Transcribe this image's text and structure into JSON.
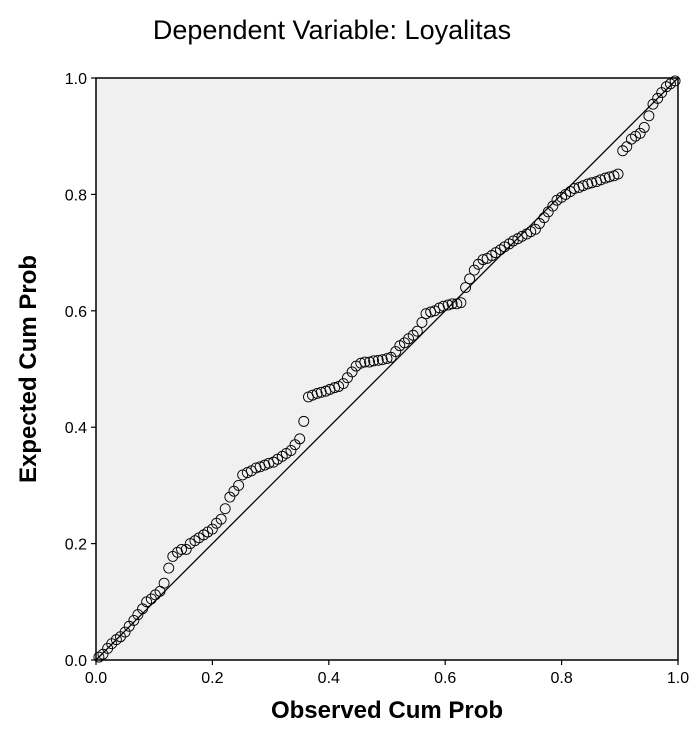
{
  "chart_data": {
    "type": "scatter",
    "title": "Dependent Variable: Loyalitas",
    "xlabel": "Observed Cum Prob",
    "ylabel": "Expected Cum Prob",
    "xlim": [
      0.0,
      1.0
    ],
    "ylim": [
      0.0,
      1.0
    ],
    "x_ticks": [
      "0.0",
      "0.2",
      "0.4",
      "0.6",
      "0.8",
      "1.0"
    ],
    "y_ticks": [
      "0.0",
      "0.2",
      "0.4",
      "0.6",
      "0.8",
      "1.0"
    ],
    "grid": false,
    "legend": "none",
    "plot_background": "#f0f0f0",
    "reference_line": {
      "from": [
        0.0,
        0.0
      ],
      "to": [
        1.0,
        1.0
      ]
    },
    "points": {
      "x": [
        0.005,
        0.012,
        0.02,
        0.027,
        0.035,
        0.042,
        0.05,
        0.057,
        0.065,
        0.072,
        0.08,
        0.087,
        0.095,
        0.102,
        0.11,
        0.117,
        0.125,
        0.132,
        0.14,
        0.147,
        0.155,
        0.162,
        0.17,
        0.177,
        0.185,
        0.192,
        0.2,
        0.207,
        0.215,
        0.222,
        0.23,
        0.237,
        0.245,
        0.252,
        0.26,
        0.267,
        0.275,
        0.282,
        0.29,
        0.297,
        0.305,
        0.312,
        0.32,
        0.327,
        0.335,
        0.342,
        0.35,
        0.357,
        0.365,
        0.372,
        0.38,
        0.387,
        0.395,
        0.402,
        0.41,
        0.417,
        0.425,
        0.432,
        0.44,
        0.447,
        0.455,
        0.462,
        0.47,
        0.477,
        0.485,
        0.492,
        0.5,
        0.507,
        0.515,
        0.522,
        0.53,
        0.537,
        0.545,
        0.552,
        0.56,
        0.567,
        0.575,
        0.582,
        0.59,
        0.597,
        0.605,
        0.612,
        0.62,
        0.627,
        0.635,
        0.642,
        0.65,
        0.657,
        0.665,
        0.672,
        0.68,
        0.687,
        0.695,
        0.702,
        0.71,
        0.717,
        0.725,
        0.732,
        0.74,
        0.747,
        0.755,
        0.762,
        0.77,
        0.777,
        0.785,
        0.792,
        0.8,
        0.807,
        0.815,
        0.822,
        0.83,
        0.837,
        0.845,
        0.852,
        0.86,
        0.867,
        0.875,
        0.882,
        0.89,
        0.897,
        0.905,
        0.912,
        0.92,
        0.927,
        0.935,
        0.942,
        0.95,
        0.957,
        0.965,
        0.972,
        0.98,
        0.987,
        0.995
      ],
      "y": [
        0.005,
        0.01,
        0.02,
        0.028,
        0.035,
        0.04,
        0.048,
        0.058,
        0.068,
        0.078,
        0.088,
        0.1,
        0.105,
        0.112,
        0.118,
        0.132,
        0.158,
        0.178,
        0.185,
        0.19,
        0.19,
        0.2,
        0.205,
        0.21,
        0.215,
        0.22,
        0.225,
        0.235,
        0.242,
        0.26,
        0.28,
        0.29,
        0.3,
        0.318,
        0.322,
        0.325,
        0.33,
        0.332,
        0.335,
        0.338,
        0.34,
        0.345,
        0.35,
        0.355,
        0.36,
        0.37,
        0.38,
        0.41,
        0.452,
        0.455,
        0.458,
        0.46,
        0.462,
        0.465,
        0.468,
        0.47,
        0.475,
        0.485,
        0.495,
        0.505,
        0.51,
        0.512,
        0.512,
        0.514,
        0.515,
        0.516,
        0.518,
        0.52,
        0.53,
        0.54,
        0.545,
        0.552,
        0.558,
        0.565,
        0.58,
        0.595,
        0.598,
        0.6,
        0.605,
        0.608,
        0.61,
        0.612,
        0.612,
        0.614,
        0.64,
        0.655,
        0.67,
        0.68,
        0.688,
        0.69,
        0.695,
        0.7,
        0.705,
        0.71,
        0.715,
        0.72,
        0.724,
        0.728,
        0.732,
        0.736,
        0.74,
        0.75,
        0.76,
        0.77,
        0.78,
        0.79,
        0.795,
        0.8,
        0.805,
        0.81,
        0.812,
        0.815,
        0.818,
        0.82,
        0.822,
        0.825,
        0.828,
        0.83,
        0.832,
        0.835,
        0.875,
        0.882,
        0.895,
        0.9,
        0.905,
        0.915,
        0.935,
        0.955,
        0.965,
        0.975,
        0.985,
        0.99,
        0.995
      ]
    }
  }
}
